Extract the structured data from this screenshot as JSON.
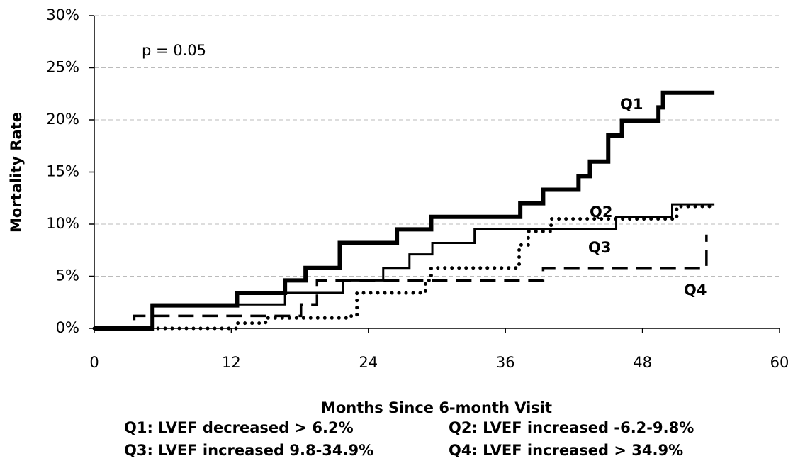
{
  "chart_data": {
    "type": "step",
    "annotation": "p = 0.05",
    "x_label": "Months Since 6-month Visit",
    "y_label": "Mortality Rate",
    "notes": [
      "Q1: LVEF decreased > 6.2%",
      "Q2: LVEF increased -6.2-9.8%",
      "Q3: LVEF increased 9.8-34.9%",
      "Q4: LVEF increased > 34.9%"
    ],
    "xlim": [
      0,
      60
    ],
    "xticks": [
      0,
      12,
      24,
      36,
      48,
      60
    ],
    "ylim": [
      0,
      30
    ],
    "yticks": [
      {
        "value": 0,
        "label": "0%"
      },
      {
        "value": 5,
        "label": "5%"
      },
      {
        "value": 10,
        "label": "10%"
      },
      {
        "value": 15,
        "label": "15%"
      },
      {
        "value": 20,
        "label": "20%"
      },
      {
        "value": 25,
        "label": "25%"
      },
      {
        "value": 30,
        "label": "30%"
      }
    ],
    "grid": true,
    "series": [
      {
        "name": "Q1",
        "color": "#000000",
        "style": "thick",
        "x": [
          0,
          5.1,
          12.5,
          16.7,
          18.5,
          21.5,
          26.5,
          29.5,
          37.3,
          39.3,
          42.4,
          43.4,
          45.0,
          46.2,
          49.4,
          49.8,
          54.3
        ],
        "values": [
          0,
          2.2,
          3.4,
          4.6,
          5.8,
          8.2,
          9.5,
          10.7,
          12.0,
          13.3,
          14.6,
          16.0,
          18.5,
          19.9,
          21.2,
          22.6,
          22.6
        ]
      },
      {
        "name": "Q2",
        "color": "#000000",
        "style": "dotted",
        "x": [
          0,
          12.5,
          15,
          22.5,
          23,
          29,
          29.5,
          37.2,
          38,
          40,
          51,
          54.3
        ],
        "values": [
          0,
          0.5,
          1.0,
          1.2,
          3.4,
          4.6,
          5.8,
          8.0,
          9.3,
          10.5,
          11.7,
          11.7
        ]
      },
      {
        "name": "Q3",
        "color": "#000000",
        "style": "solid",
        "x": [
          0,
          5.1,
          16.7,
          21.8,
          25.3,
          27.6,
          29.6,
          33.3,
          45.7,
          50.6,
          54.3
        ],
        "values": [
          0,
          2.3,
          3.4,
          4.6,
          5.8,
          7.1,
          8.2,
          9.5,
          10.7,
          11.9,
          11.9
        ]
      },
      {
        "name": "Q4",
        "color": "#000000",
        "style": "dashed",
        "x": [
          0,
          3.5,
          18.1,
          19.5,
          39.3,
          53.6
        ],
        "values": [
          0,
          1.2,
          2.3,
          4.6,
          5.8,
          9.0
        ]
      }
    ]
  }
}
